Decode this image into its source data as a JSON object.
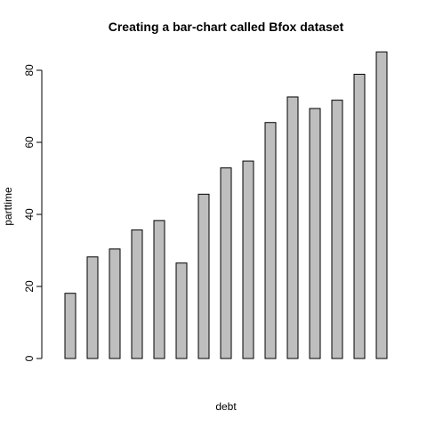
{
  "chart_data": {
    "type": "bar",
    "title": "Creating a bar-chart called Bfox dataset",
    "xlabel": "debt",
    "ylabel": "parttime",
    "ylim": [
      0,
      86
    ],
    "yticks": [
      0,
      20,
      40,
      60,
      80
    ],
    "grid": false,
    "values": [
      18.1,
      28.2,
      30.4,
      35.7,
      38.3,
      26.5,
      45.6,
      52.9,
      54.8,
      65.5,
      72.6,
      69.4,
      71.7,
      78.9,
      85.1
    ],
    "bar_color": "#bebebe"
  }
}
